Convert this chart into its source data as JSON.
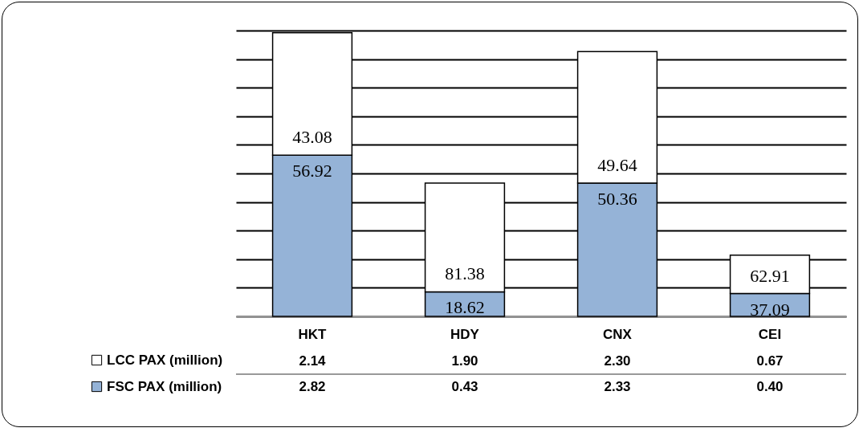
{
  "chart_data": {
    "type": "bar",
    "stacked": true,
    "categories": [
      "HKT",
      "HDY",
      "CNX",
      "CEI"
    ],
    "series": [
      {
        "name": "FSC PAX (million)",
        "color": "#95b3d7",
        "values": [
          2.82,
          0.43,
          2.33,
          0.4
        ],
        "value_labels": [
          "2.82",
          "0.43",
          "2.33",
          "0.40"
        ]
      },
      {
        "name": "LCC PAX (million)",
        "color": "#ffffff",
        "values": [
          2.14,
          1.9,
          2.3,
          0.67
        ],
        "value_labels": [
          "2.14",
          "1.90",
          "2.30",
          "0.67"
        ]
      }
    ],
    "annotations": [
      {
        "text": "56.92",
        "x": "HKT",
        "y": 2.82
      },
      {
        "text": "43.08",
        "x": "HKT",
        "y": 2.82
      },
      {
        "text": "18.62",
        "x": "HDY",
        "y": 0.43
      },
      {
        "text": "81.38",
        "x": "HDY",
        "y": 0.43
      },
      {
        "text": "50.36",
        "x": "CNX",
        "y": 2.33
      },
      {
        "text": "49.64",
        "x": "CNX",
        "y": 2.33
      },
      {
        "text": "37.09",
        "x": "CEI",
        "y": 0.4
      },
      {
        "text": "62.91",
        "x": "CEI",
        "y": 0.4
      }
    ],
    "grid": "y",
    "tick_labels": "x",
    "legend": "bottom left"
  }
}
